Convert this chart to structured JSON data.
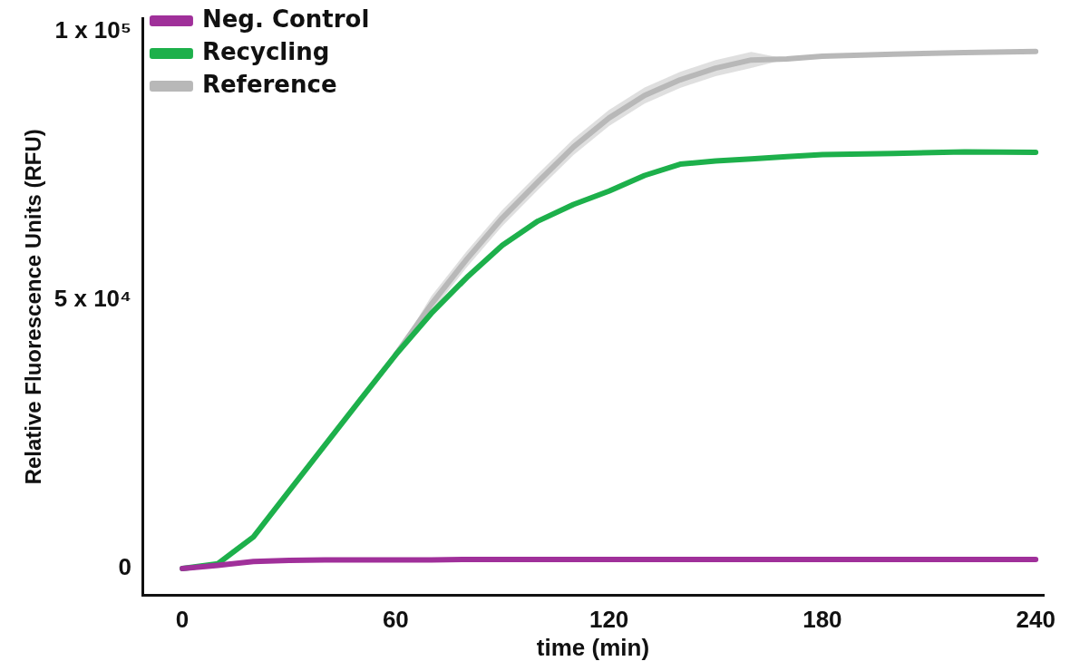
{
  "chart_data": {
    "type": "line",
    "xlabel": "time (min)",
    "ylabel": "Relative Fluorescence Units (RFU)",
    "x": [
      0,
      10,
      20,
      30,
      40,
      50,
      60,
      70,
      80,
      90,
      100,
      110,
      120,
      130,
      140,
      150,
      160,
      170,
      180,
      200,
      220,
      240
    ],
    "series": [
      {
        "name": "Neg. Control",
        "color": "#a0309a",
        "values": [
          0,
          600,
          1300,
          1500,
          1600,
          1600,
          1600,
          1600,
          1700,
          1700,
          1700,
          1700,
          1700,
          1700,
          1700,
          1700,
          1700,
          1700,
          1700,
          1700,
          1700,
          1700
        ]
      },
      {
        "name": "Recycling",
        "color": "#1db04b",
        "values": [
          0,
          900,
          5900,
          14400,
          22900,
          31400,
          39800,
          47500,
          54200,
          60200,
          64700,
          67800,
          70300,
          73200,
          75300,
          75900,
          76300,
          76700,
          77100,
          77300,
          77600,
          77500
        ]
      },
      {
        "name": "Reference",
        "color": "#b8b8b8",
        "values": [
          null,
          null,
          null,
          null,
          null,
          null,
          39800,
          49200,
          57600,
          65300,
          72000,
          78500,
          83900,
          88100,
          91000,
          93200,
          94700,
          94900,
          95400,
          95800,
          96100,
          96300
        ],
        "lower": [
          null,
          null,
          null,
          null,
          null,
          null,
          39800,
          47700,
          56100,
          63800,
          70500,
          77000,
          82400,
          86600,
          89500,
          91700,
          93200,
          94900,
          95400,
          95800,
          96100,
          96300
        ],
        "upper": [
          null,
          null,
          null,
          null,
          null,
          null,
          39800,
          50700,
          59100,
          66800,
          73500,
          80000,
          85400,
          89600,
          92500,
          94700,
          96200,
          94900,
          95400,
          95800,
          96100,
          96300
        ]
      }
    ],
    "xlim": [
      -11,
      242
    ],
    "xticks": [
      0,
      60,
      120,
      180,
      240
    ],
    "ylim": [
      -5000,
      102500
    ],
    "yticks": [
      {
        "value": 0,
        "label": "0"
      },
      {
        "value": 50000,
        "label": "5 x 10⁴"
      },
      {
        "value": 100000,
        "label": "1 x 10⁵"
      }
    ],
    "grid": false,
    "legend": "top left",
    "marker": "none",
    "line_style": "solid"
  }
}
